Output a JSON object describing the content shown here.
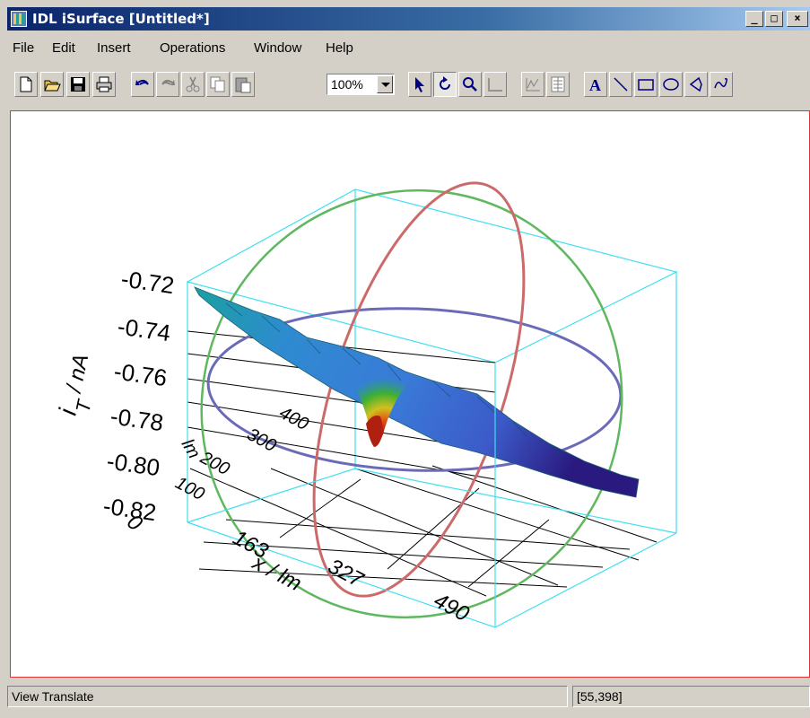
{
  "window": {
    "title": "IDL iSurface [Untitled*]"
  },
  "caption_buttons": [
    {
      "name": "minimize",
      "glyph": "_"
    },
    {
      "name": "maximize",
      "glyph": "□"
    },
    {
      "name": "close",
      "glyph": "×"
    }
  ],
  "menu": [
    "File",
    "Edit",
    "Insert",
    "Operations",
    "Window",
    "Help"
  ],
  "toolbar": {
    "zoom": "100%",
    "buttons": [
      "new-file-icon",
      "open-folder-icon",
      "save-icon",
      "print-icon",
      "undo-icon",
      "redo-icon",
      "cut-icon",
      "copy-icon",
      "paste-icon",
      "select-arrow-icon",
      "rotate-icon",
      "zoom-magnifier-icon",
      "line-profile-icon",
      "plot-profile-icon",
      "data-range-icon",
      "text-annotation-icon",
      "line-annotation-icon",
      "rectangle-icon",
      "oval-icon",
      "polygon-icon",
      "freehand-icon"
    ],
    "text_tool_label": "A"
  },
  "plot": {
    "z_axis_label_main": "i",
    "z_axis_label_sub": "T",
    "z_axis_label_unit": " / nA",
    "z_ticks": [
      "-0.72",
      "-0.74",
      "-0.76",
      "-0.78",
      "-0.80",
      "-0.82"
    ],
    "x_axis_label": "x / lm",
    "x_ticks": [
      "0",
      "163",
      "327",
      "490"
    ],
    "y_axis_label": "lm",
    "y_ticks": [
      "100",
      "200",
      "300",
      "400"
    ],
    "colors": {
      "bounding_box": "#40e0f0",
      "ring_green": "#5fb85f",
      "ring_red": "#cc6a6a",
      "ring_blue": "#6a6ab8",
      "frame_border": "#dd3333"
    }
  },
  "status": {
    "mode": "View Translate",
    "coords": "[55,398]"
  }
}
